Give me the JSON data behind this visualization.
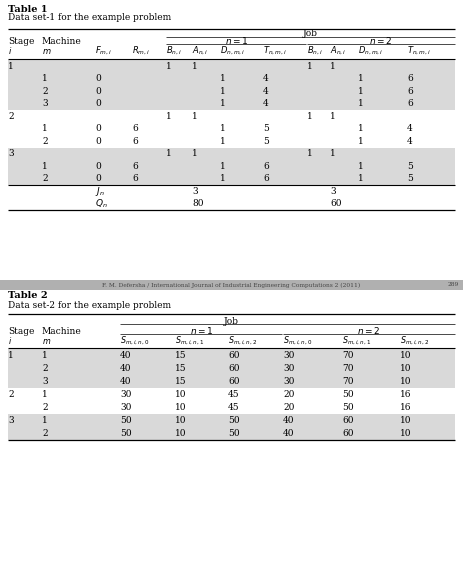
{
  "bg_color": "#ffffff",
  "gray_color": "#d9d9d9",
  "sep_color": "#b0b0b0",
  "footer_text": "F. M. Defersha / International Journal of Industrial Engineering Computations 2 (2011)",
  "footer_page": "289",
  "t1_title": "Table 1",
  "t1_subtitle": "Data set-1 for the example problem",
  "t2_title": "Table 2",
  "t2_subtitle": "Data set-2 for the example problem",
  "figw": 4.63,
  "figh": 5.85,
  "dpi": 100
}
